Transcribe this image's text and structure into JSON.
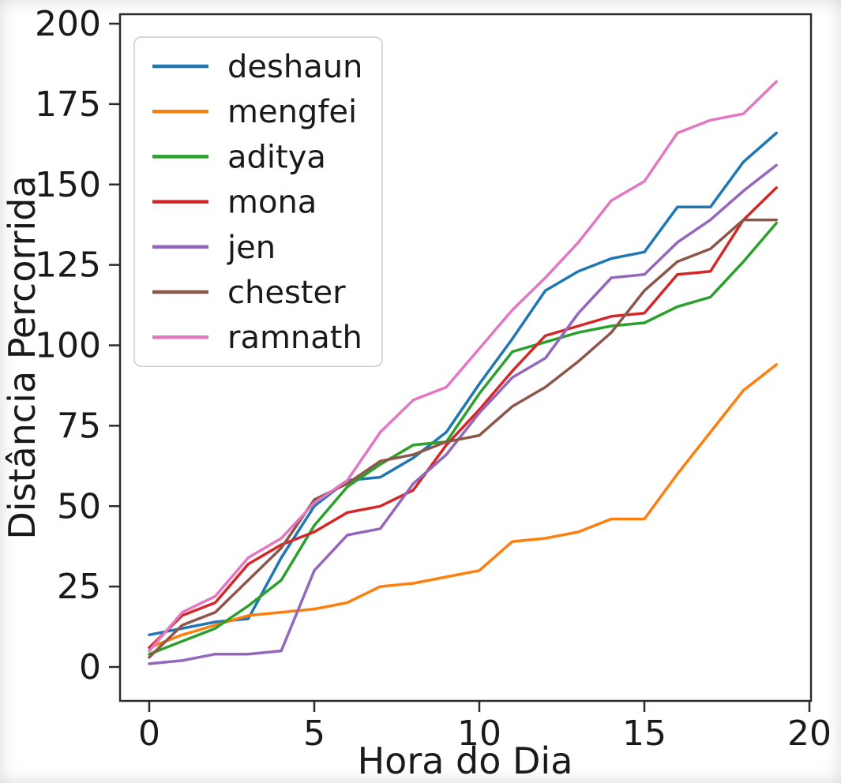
{
  "figure": {
    "background_color": "#ffffff",
    "text_color": "#1a1a1a"
  },
  "chart_data": {
    "type": "line",
    "title": "",
    "xlabel": "Hora do Dia",
    "ylabel": "Distância Percorrida",
    "x": [
      0,
      1,
      2,
      3,
      4,
      5,
      6,
      7,
      8,
      9,
      10,
      11,
      12,
      13,
      14,
      15,
      16,
      17,
      18,
      19
    ],
    "xlim": [
      -0.9,
      20.05
    ],
    "ylim": [
      -10.5,
      203
    ],
    "x_ticks": [
      0,
      5,
      10,
      15,
      20
    ],
    "x_tick_labels": [
      "0",
      "5",
      "10",
      "15",
      "20"
    ],
    "y_ticks": [
      0,
      25,
      50,
      75,
      100,
      125,
      150,
      175,
      200
    ],
    "y_tick_labels": [
      "0",
      "25",
      "50",
      "75",
      "100",
      "125",
      "150",
      "175",
      "200"
    ],
    "grid": false,
    "legend_position": "upper left",
    "series": [
      {
        "name": "deshaun",
        "color": "#1f77b4",
        "values": [
          10,
          12,
          14,
          15,
          34,
          50,
          58,
          59,
          65,
          73,
          88,
          102,
          117,
          123,
          127,
          129,
          143,
          143,
          157,
          166
        ]
      },
      {
        "name": "mengfei",
        "color": "#ff7f0e",
        "values": [
          6,
          10,
          13,
          16,
          17,
          18,
          20,
          25,
          26,
          28,
          30,
          39,
          40,
          42,
          46,
          46,
          60,
          73,
          86,
          94
        ]
      },
      {
        "name": "aditya",
        "color": "#2ca02c",
        "values": [
          4,
          8,
          12,
          19,
          27,
          44,
          56,
          63,
          69,
          70,
          85,
          98,
          101,
          104,
          106,
          107,
          112,
          115,
          126,
          138
        ]
      },
      {
        "name": "mona",
        "color": "#d62728",
        "values": [
          6,
          16,
          20,
          32,
          38,
          42,
          48,
          50,
          55,
          69,
          80,
          92,
          103,
          106,
          109,
          110,
          122,
          123,
          139,
          149
        ]
      },
      {
        "name": "jen",
        "color": "#9467bd",
        "values": [
          1,
          2,
          4,
          4,
          5,
          30,
          41,
          43,
          57,
          66,
          79,
          90,
          96,
          110,
          121,
          122,
          132,
          139,
          148,
          156
        ]
      },
      {
        "name": "chester",
        "color": "#8c564b",
        "values": [
          3,
          13,
          17,
          27,
          37,
          52,
          57,
          64,
          66,
          70,
          72,
          81,
          87,
          95,
          104,
          117,
          126,
          130,
          139,
          139
        ]
      },
      {
        "name": "ramnath",
        "color": "#e377c2",
        "values": [
          5,
          17,
          22,
          34,
          40,
          51,
          58,
          73,
          83,
          87,
          99,
          111,
          121,
          132,
          145,
          151,
          166,
          170,
          172,
          182
        ]
      }
    ]
  }
}
